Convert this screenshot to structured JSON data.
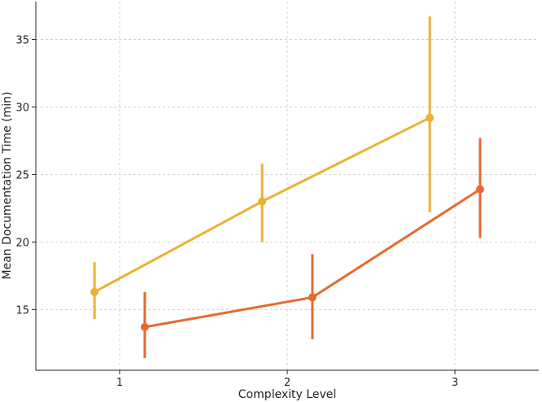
{
  "chart_data": {
    "type": "line",
    "title": "",
    "xlabel": "Complexity Level",
    "ylabel": "Mean Documentation Time (min)",
    "xlim": [
      0.5,
      3.5
    ],
    "ylim": [
      10.5,
      37.8
    ],
    "xticks": [
      1,
      2,
      3
    ],
    "yticks": [
      15,
      20,
      25,
      30,
      35
    ],
    "grid": true,
    "legend": "none",
    "series": [
      {
        "color": "#EBB134",
        "x": [
          0.85,
          1.85,
          2.85
        ],
        "y": [
          16.3,
          23.0,
          29.2
        ],
        "err_low": [
          14.3,
          20.0,
          22.2
        ],
        "err_high": [
          18.5,
          25.8,
          36.7
        ]
      },
      {
        "color": "#E8692E",
        "x": [
          1.15,
          2.15,
          3.15
        ],
        "y": [
          13.7,
          15.9,
          23.9
        ],
        "err_low": [
          11.4,
          12.8,
          20.3
        ],
        "err_high": [
          16.3,
          19.1,
          27.7
        ]
      }
    ]
  }
}
